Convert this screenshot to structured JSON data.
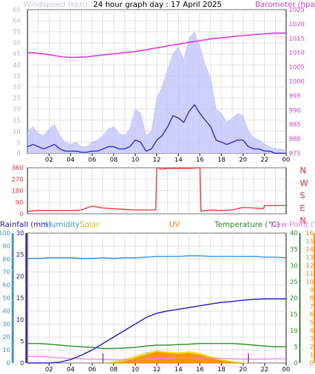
{
  "title": "24 hour graph day : 17 April 2025",
  "colors": {
    "wind": "#2323cc",
    "gust": "#c4c4ff",
    "baro": "#e040e0",
    "dir": "#ff3030",
    "rain": "#2020c0",
    "humidity": "#3a98e8",
    "solar": "#e8d400",
    "uv": "#ff8a00",
    "temp": "#2e8b2e",
    "dew": "#ff77ff",
    "grid": "#cfcfcf"
  },
  "x_tick_labels": [
    "02",
    "04",
    "06",
    "08",
    "10",
    "12",
    "14",
    "16",
    "18",
    "20",
    "22",
    "00"
  ],
  "chart_data": [
    {
      "type": "line",
      "name": "wind-baro",
      "title": "24 hour graph day : 17 April 2025",
      "left_label": "Windspeed (kph)",
      "right_label": "Barometer (hpa)",
      "left_ticks": [
        "0",
        "5",
        "10",
        "15",
        "20",
        "25",
        "30",
        "35",
        "40",
        "45",
        "50",
        "55",
        "60",
        "65"
      ],
      "right_ticks": [
        "975",
        "980",
        "985",
        "990",
        "995",
        "1000",
        "1005",
        "1010",
        "1015",
        "1020",
        "1025"
      ],
      "ylim_left": [
        0,
        65
      ],
      "ylim_right": [
        975,
        1025
      ],
      "x_hours": [
        0,
        0.5,
        1,
        1.5,
        2,
        2.5,
        3,
        3.5,
        4,
        4.5,
        5,
        5.5,
        6,
        6.5,
        7,
        7.5,
        8,
        8.5,
        9,
        9.5,
        10,
        10.5,
        11,
        11.5,
        12,
        12.5,
        13,
        13.5,
        14,
        14.5,
        15,
        15.5,
        16,
        16.5,
        17,
        17.5,
        18,
        18.5,
        19,
        19.5,
        20,
        20.5,
        21,
        21.5,
        22,
        22.5,
        23,
        23.5,
        24
      ],
      "series": [
        {
          "key": "wind",
          "values": [
            3,
            4,
            3,
            2,
            3,
            4,
            2,
            1,
            1,
            1,
            0.5,
            0.5,
            1,
            1,
            2,
            3,
            3,
            2,
            2,
            3,
            6,
            5,
            1,
            2,
            6,
            8,
            12,
            17,
            16,
            14,
            19,
            22,
            18,
            15,
            12,
            6,
            5,
            4,
            5,
            6,
            6,
            3,
            2,
            2,
            1,
            1,
            0,
            0,
            0
          ]
        },
        {
          "key": "gust",
          "values": [
            10,
            12,
            9,
            8,
            11,
            13,
            8,
            5,
            4,
            5,
            3,
            3,
            5,
            6,
            8,
            11,
            12,
            9,
            8,
            11,
            20,
            18,
            8,
            10,
            25,
            30,
            38,
            45,
            48,
            42,
            52,
            55,
            48,
            40,
            34,
            20,
            18,
            14,
            16,
            18,
            17,
            10,
            7,
            6,
            4,
            3,
            2,
            2,
            1
          ]
        },
        {
          "key": "baro",
          "values": [
            1010,
            1010,
            1009.8,
            1009.6,
            1009.3,
            1009,
            1008.7,
            1008.5,
            1008.4,
            1008.4,
            1008.5,
            1008.6,
            1008.8,
            1009,
            1009.2,
            1009.4,
            1009.6,
            1009.8,
            1010,
            1010.2,
            1010.4,
            1010.7,
            1011,
            1011.4,
            1011.7,
            1012,
            1012.4,
            1012.7,
            1013,
            1013.3,
            1013.6,
            1013.9,
            1014.2,
            1014.5,
            1014.8,
            1015,
            1015.2,
            1015.4,
            1015.6,
            1015.8,
            1016,
            1016.1,
            1016.3,
            1016.4,
            1016.6,
            1016.7,
            1016.8,
            1016.8,
            1016.9
          ]
        }
      ]
    },
    {
      "type": "line",
      "name": "wind-direction",
      "left_ticks": [
        "0",
        "90",
        "180",
        "270",
        "360"
      ],
      "right_ticks": [
        "N",
        "E",
        "S",
        "W",
        "N"
      ],
      "ylim": [
        0,
        360
      ],
      "x_hours": [
        0,
        1,
        2,
        3,
        4,
        5,
        6,
        7,
        8,
        9,
        10,
        11,
        11.9,
        12,
        12.5,
        13,
        14,
        15,
        16,
        16.1,
        17,
        18,
        19,
        20,
        21,
        21.9,
        22,
        23,
        24
      ],
      "series": [
        {
          "key": "dir",
          "values": [
            20,
            25,
            25,
            25,
            25,
            30,
            60,
            45,
            40,
            35,
            30,
            30,
            30,
            360,
            350,
            355,
            355,
            355,
            360,
            20,
            30,
            25,
            30,
            50,
            45,
            40,
            65,
            65,
            65
          ]
        }
      ]
    },
    {
      "type": "line",
      "name": "rain-temp",
      "legend": [
        "Rainfall (mm)",
        "Humidity",
        "Solar",
        "UV",
        "Temperature (°C)",
        "Dew Point (°C)"
      ],
      "rain_ticks": [
        "0",
        "5",
        "10",
        "15",
        "20",
        "25",
        "30"
      ],
      "humidity_ticks": [
        "0",
        "10",
        "20",
        "30",
        "40",
        "50",
        "60",
        "70",
        "80",
        "90",
        "100"
      ],
      "temp_ticks": [
        "0",
        "5",
        "10",
        "15",
        "20",
        "25",
        "30",
        "35",
        "40"
      ],
      "uv_ticks": [
        "0",
        "1",
        "2",
        "3",
        "4",
        "5",
        "6",
        "7",
        "8",
        "9",
        "10",
        "11",
        "12",
        "13",
        "14",
        "15",
        "16"
      ],
      "ylim_rain": [
        0,
        30
      ],
      "ylim_humidity": [
        0,
        100
      ],
      "ylim_temp": [
        0,
        40
      ],
      "ylim_uv": [
        0,
        16
      ],
      "x_hours": [
        0,
        1,
        2,
        3,
        4,
        5,
        6,
        7,
        8,
        9,
        10,
        11,
        12,
        13,
        14,
        15,
        16,
        17,
        18,
        19,
        20,
        21,
        22,
        23,
        24
      ],
      "series": [
        {
          "key": "rain",
          "values": [
            0,
            0,
            0,
            0.2,
            0.8,
            1.8,
            3,
            4.5,
            6,
            7.5,
            9,
            10.5,
            11.5,
            12,
            12.4,
            12.8,
            13.2,
            13.6,
            14,
            14.2,
            14.5,
            14.7,
            14.8,
            14.8,
            14.8
          ]
        },
        {
          "key": "humidity",
          "values": [
            80.5,
            80.5,
            81,
            81,
            81,
            80.5,
            80.5,
            81,
            80.5,
            81,
            81,
            81.5,
            82,
            82,
            82,
            82.5,
            82.5,
            82,
            82,
            82,
            82,
            82,
            81.5,
            81.5,
            81
          ]
        },
        {
          "key": "temp",
          "values": [
            6,
            6,
            5.8,
            5.5,
            5.2,
            5,
            4.8,
            4.5,
            4.5,
            4.6,
            4.8,
            5.2,
            5.5,
            5.5,
            5.7,
            5.8,
            6,
            6,
            6,
            6,
            5.8,
            5.5,
            5.2,
            5,
            5
          ]
        },
        {
          "key": "dew",
          "values": [
            2,
            2,
            1.8,
            1.6,
            1.4,
            1.3,
            1.2,
            1.1,
            1,
            1,
            1,
            1.2,
            1.3,
            1.4,
            1.6,
            1.6,
            1.5,
            1.5,
            1.4,
            1.3,
            1.2,
            1.2,
            1.2,
            1.3,
            1.3
          ]
        },
        {
          "key": "solar",
          "values": [
            0,
            0,
            0,
            0,
            0,
            0,
            0,
            0,
            0.5,
            1.2,
            2.2,
            3.3,
            3.8,
            3.5,
            3.3,
            3.6,
            3.1,
            2.1,
            1.2,
            0.6,
            0.2,
            0,
            0,
            0,
            0
          ]
        },
        {
          "key": "uv",
          "values": [
            0,
            0,
            0,
            0,
            0,
            0,
            0,
            0,
            0,
            0.2,
            0.6,
            1.0,
            1.4,
            1.2,
            1.1,
            1.2,
            1.0,
            0.6,
            0.3,
            0.1,
            0,
            0,
            0,
            0,
            0
          ]
        }
      ]
    }
  ]
}
